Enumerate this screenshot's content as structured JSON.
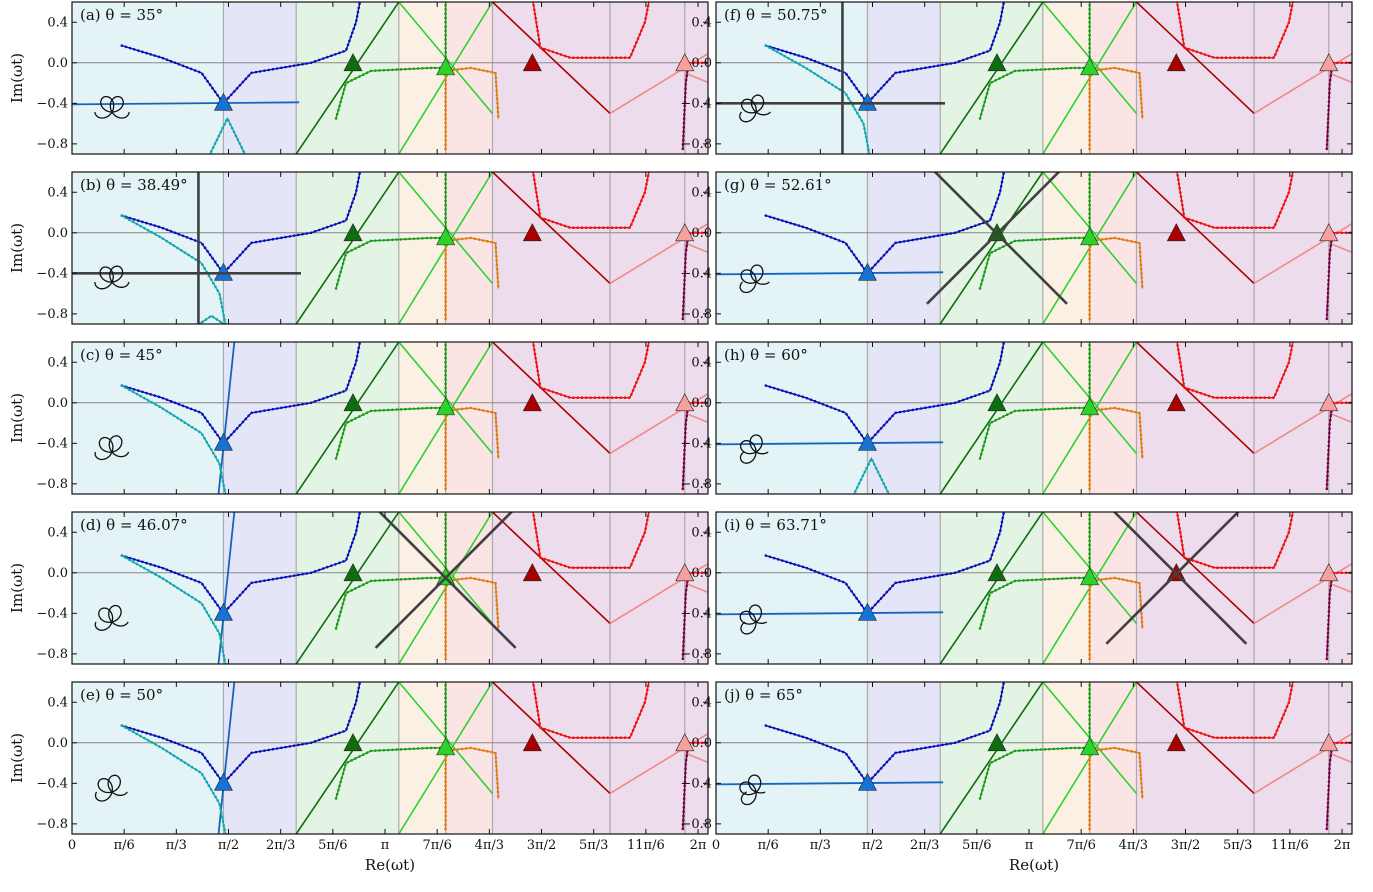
{
  "chart_data": {
    "type": "scatter",
    "xlabel": "Re(ωt)",
    "ylabel": "Im(ωt)",
    "xlim": [
      0,
      6.3832
    ],
    "ylim": [
      -0.9,
      0.6
    ],
    "xticks": [
      {
        "v": 0,
        "label": "0"
      },
      {
        "v": 0.5236,
        "label": "π/6"
      },
      {
        "v": 1.0472,
        "label": "π/3"
      },
      {
        "v": 1.5708,
        "label": "π/2"
      },
      {
        "v": 2.0944,
        "label": "2π/3"
      },
      {
        "v": 2.618,
        "label": "5π/6"
      },
      {
        "v": 3.1416,
        "label": "π"
      },
      {
        "v": 3.6652,
        "label": "7π/6"
      },
      {
        "v": 4.1888,
        "label": "4π/3"
      },
      {
        "v": 4.7124,
        "label": "3π/2"
      },
      {
        "v": 5.236,
        "label": "5π/3"
      },
      {
        "v": 5.7596,
        "label": "11π/6"
      },
      {
        "v": 6.2832,
        "label": "2π"
      }
    ],
    "yticks": [
      {
        "v": 0.4,
        "label": "0.4"
      },
      {
        "v": 0.0,
        "label": "0.0"
      },
      {
        "v": -0.4,
        "label": "−0.4"
      },
      {
        "v": -0.8,
        "label": "−0.8"
      }
    ],
    "panels": [
      {
        "id": "a",
        "label": "(a) θ = 35°",
        "col": 0,
        "row": 0,
        "bounds": [
          1.52,
          2.25,
          3.28,
          3.75,
          4.22,
          5.4,
          6.15
        ],
        "tris": [
          [
            1.52,
            -0.4
          ],
          [
            2.82,
            -0.01
          ],
          [
            3.75,
            -0.05
          ],
          [
            4.62,
            -0.01
          ],
          [
            6.15,
            -0.01
          ]
        ],
        "cyanUpper": false,
        "cyanLower": [
          1.56,
          -0.55
        ],
        "blueline": [
          [
            0.0,
            -0.41
          ],
          [
            2.28,
            -0.39
          ]
        ],
        "star": null
      },
      {
        "id": "b",
        "label": "(b) θ = 38.49°",
        "col": 0,
        "row": 1,
        "bounds": [
          1.52,
          2.25,
          3.28,
          3.75,
          4.22,
          5.4,
          6.15
        ],
        "tris": [
          [
            1.52,
            -0.4
          ],
          [
            2.82,
            -0.01
          ],
          [
            3.75,
            -0.05
          ],
          [
            4.62,
            -0.01
          ],
          [
            6.15,
            -0.01
          ]
        ],
        "cyanUpper": true,
        "cyanLower": [
          1.4,
          -0.82
        ],
        "blueline": null,
        "star": [
          1.52,
          -0.4,
          "plus"
        ]
      },
      {
        "id": "c",
        "label": "(c) θ = 45°",
        "col": 0,
        "row": 2,
        "bounds": [
          1.52,
          2.25,
          3.28,
          3.75,
          4.22,
          5.4,
          6.15
        ],
        "tris": [
          [
            1.52,
            -0.4
          ],
          [
            2.82,
            -0.01
          ],
          [
            3.75,
            -0.05
          ],
          [
            4.62,
            -0.01
          ],
          [
            6.15,
            -0.01
          ]
        ],
        "cyanUpper": true,
        "cyanLower": null,
        "blueline": [
          [
            1.46,
            -1.0
          ],
          [
            1.64,
            0.7
          ]
        ],
        "star": null
      },
      {
        "id": "d",
        "label": "(d) θ = 46.07°",
        "col": 0,
        "row": 3,
        "bounds": [
          1.52,
          2.25,
          3.28,
          3.75,
          4.22,
          5.4,
          6.15
        ],
        "tris": [
          [
            1.52,
            -0.4
          ],
          [
            2.82,
            -0.01
          ],
          [
            3.75,
            -0.05
          ],
          [
            4.62,
            -0.01
          ],
          [
            6.15,
            -0.01
          ]
        ],
        "cyanUpper": true,
        "cyanLower": null,
        "blueline": [
          [
            1.46,
            -1.0
          ],
          [
            1.64,
            0.7
          ]
        ],
        "star": [
          3.75,
          -0.05,
          "x"
        ]
      },
      {
        "id": "e",
        "label": "(e) θ = 50°",
        "col": 0,
        "row": 4,
        "bounds": [
          1.52,
          2.25,
          3.28,
          3.75,
          4.22,
          5.4,
          6.15
        ],
        "tris": [
          [
            1.52,
            -0.4
          ],
          [
            2.82,
            -0.01
          ],
          [
            3.75,
            -0.05
          ],
          [
            4.62,
            -0.01
          ],
          [
            6.15,
            -0.01
          ]
        ],
        "cyanUpper": true,
        "cyanLower": null,
        "blueline": [
          [
            1.46,
            -1.0
          ],
          [
            1.64,
            0.7
          ]
        ],
        "star": null
      },
      {
        "id": "f",
        "label": "(f) θ = 50.75°",
        "col": 1,
        "row": 0,
        "bounds": [
          1.52,
          2.25,
          3.28,
          3.75,
          4.22,
          5.4,
          6.15
        ],
        "tris": [
          [
            1.52,
            -0.4
          ],
          [
            2.82,
            -0.01
          ],
          [
            3.75,
            -0.05
          ],
          [
            4.62,
            -0.01
          ],
          [
            6.15,
            -0.01
          ]
        ],
        "cyanUpper": true,
        "cyanLower": null,
        "blueline": null,
        "star": [
          1.52,
          -0.4,
          "plus"
        ]
      },
      {
        "id": "g",
        "label": "(g) θ = 52.61°",
        "col": 1,
        "row": 1,
        "bounds": [
          1.52,
          2.25,
          3.28,
          3.75,
          4.22,
          5.4,
          6.15
        ],
        "tris": [
          [
            1.52,
            -0.4
          ],
          [
            2.82,
            -0.01
          ],
          [
            3.75,
            -0.05
          ],
          [
            4.62,
            -0.01
          ],
          [
            6.15,
            -0.01
          ]
        ],
        "cyanUpper": false,
        "cyanLower": null,
        "blueline": [
          [
            0.0,
            -0.41
          ],
          [
            2.28,
            -0.39
          ]
        ],
        "star": [
          2.82,
          -0.01,
          "x"
        ]
      },
      {
        "id": "h",
        "label": "(h) θ = 60°",
        "col": 1,
        "row": 2,
        "bounds": [
          1.52,
          2.25,
          3.28,
          3.75,
          4.22,
          5.4,
          6.15
        ],
        "tris": [
          [
            1.52,
            -0.4
          ],
          [
            2.82,
            -0.01
          ],
          [
            3.75,
            -0.05
          ],
          [
            4.62,
            -0.01
          ],
          [
            6.15,
            -0.01
          ]
        ],
        "cyanUpper": false,
        "cyanLower": [
          1.56,
          -0.55
        ],
        "blueline": [
          [
            0.0,
            -0.41
          ],
          [
            2.28,
            -0.39
          ]
        ],
        "star": null
      },
      {
        "id": "i",
        "label": "(i) θ = 63.71°",
        "col": 1,
        "row": 3,
        "bounds": [
          1.52,
          2.25,
          3.28,
          3.75,
          4.22,
          5.4,
          6.15
        ],
        "tris": [
          [
            1.52,
            -0.4
          ],
          [
            2.82,
            -0.01
          ],
          [
            3.75,
            -0.05
          ],
          [
            4.62,
            -0.01
          ],
          [
            6.15,
            -0.01
          ]
        ],
        "cyanUpper": false,
        "cyanLower": null,
        "blueline": [
          [
            0.0,
            -0.41
          ],
          [
            2.28,
            -0.39
          ]
        ],
        "star": [
          4.62,
          -0.01,
          "x"
        ]
      },
      {
        "id": "j",
        "label": "(j) θ = 65°",
        "col": 1,
        "row": 4,
        "bounds": [
          1.52,
          2.25,
          3.28,
          3.75,
          4.22,
          5.4,
          6.15
        ],
        "tris": [
          [
            1.52,
            -0.4
          ],
          [
            2.82,
            -0.01
          ],
          [
            3.75,
            -0.05
          ],
          [
            4.62,
            -0.01
          ],
          [
            6.15,
            -0.01
          ]
        ],
        "cyanUpper": false,
        "cyanLower": null,
        "blueline": [
          [
            0.0,
            -0.41
          ],
          [
            2.28,
            -0.39
          ]
        ],
        "star": null
      }
    ]
  }
}
